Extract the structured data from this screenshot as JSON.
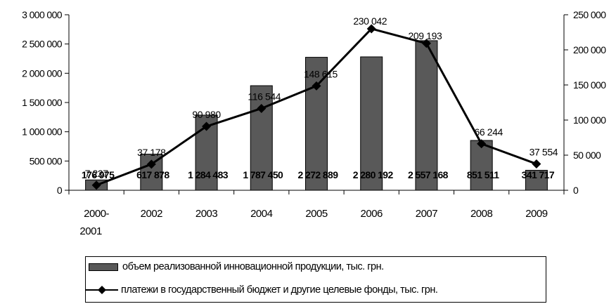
{
  "chart_data": {
    "type": "bar+line",
    "categories": [
      "2000-\n2001",
      "2002",
      "2003",
      "2004",
      "2005",
      "2006",
      "2007",
      "2008",
      "2009"
    ],
    "series": [
      {
        "name": "объем реализованной инновационной продукции, тыс. грн.",
        "type": "bar",
        "axis": "left",
        "color": "#595959",
        "values": [
          176975,
          617878,
          1284483,
          1787450,
          2272889,
          2280192,
          2557168,
          851511,
          341717
        ],
        "value_labels": [
          "176 975",
          "617 878",
          "1 284 483",
          "1 787 450",
          "2 272 889",
          "2 280 192",
          "2 557 168",
          "851 511",
          "341 717"
        ]
      },
      {
        "name": "платежи в государственный бюджет и другие целевые фонды, тыс. грн.",
        "type": "line",
        "axis": "right",
        "color": "#000000",
        "marker": "diamond",
        "values": [
          7227,
          37178,
          90980,
          116544,
          148615,
          230042,
          209193,
          66244,
          37554
        ],
        "value_labels": [
          "7 227",
          "37 178",
          "90 980",
          "116 544",
          "148 615",
          "230 042",
          "209 193",
          "66 244",
          "37 554"
        ]
      }
    ],
    "y_left": {
      "min": 0,
      "max": 3000000,
      "ticks": [
        0,
        500000,
        1000000,
        1500000,
        2000000,
        2500000,
        3000000
      ],
      "tick_labels": [
        "0",
        "500 000",
        "1 000 000",
        "1 500 000",
        "2 000 000",
        "2 500 000",
        "3 000 000"
      ]
    },
    "y_right": {
      "min": 0,
      "max": 250000,
      "ticks": [
        0,
        50000,
        100000,
        150000,
        200000,
        250000
      ],
      "tick_labels": [
        "0",
        "50 000",
        "100 000",
        "150 000",
        "200 000",
        "250 000"
      ]
    },
    "grid": false,
    "legend_position": "bottom"
  }
}
